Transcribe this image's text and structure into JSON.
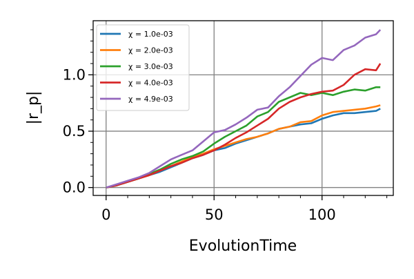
{
  "chart_data": {
    "type": "line",
    "title": "",
    "xlabel": "EvolutionTime",
    "ylabel": "|r_p|",
    "xlim": [
      -6,
      133
    ],
    "ylim": [
      -0.07,
      1.48
    ],
    "xticks": [
      0,
      50,
      100
    ],
    "xtick_labels": [
      "0",
      "50",
      "100"
    ],
    "yticks": [
      0.0,
      0.5,
      1.0
    ],
    "ytick_labels": [
      "0.0",
      "0.5",
      "1.0"
    ],
    "grid": true,
    "legend_position": "top-left",
    "x": [
      0,
      5,
      10,
      15,
      20,
      25,
      30,
      35,
      40,
      45,
      50,
      55,
      60,
      65,
      70,
      75,
      80,
      85,
      90,
      95,
      100,
      105,
      110,
      115,
      120,
      125,
      127
    ],
    "series": [
      {
        "name": "χ = 1.0e-03",
        "color": "#1f77b4",
        "values": [
          0,
          0.02,
          0.05,
          0.08,
          0.11,
          0.14,
          0.18,
          0.22,
          0.26,
          0.29,
          0.33,
          0.35,
          0.39,
          0.42,
          0.45,
          0.48,
          0.52,
          0.54,
          0.56,
          0.57,
          0.61,
          0.64,
          0.66,
          0.66,
          0.67,
          0.68,
          0.7
        ]
      },
      {
        "name": "χ = 2.0e-03",
        "color": "#ff7f0e",
        "values": [
          0,
          0.02,
          0.05,
          0.08,
          0.11,
          0.15,
          0.19,
          0.23,
          0.27,
          0.3,
          0.34,
          0.37,
          0.4,
          0.43,
          0.45,
          0.48,
          0.52,
          0.54,
          0.58,
          0.59,
          0.64,
          0.67,
          0.68,
          0.69,
          0.7,
          0.72,
          0.73
        ]
      },
      {
        "name": "χ = 3.0e-03",
        "color": "#2ca02c",
        "values": [
          0,
          0.02,
          0.05,
          0.08,
          0.12,
          0.16,
          0.21,
          0.25,
          0.28,
          0.32,
          0.39,
          0.45,
          0.5,
          0.55,
          0.63,
          0.67,
          0.76,
          0.8,
          0.84,
          0.82,
          0.84,
          0.82,
          0.85,
          0.87,
          0.86,
          0.89,
          0.89
        ]
      },
      {
        "name": "χ = 4.0e-03",
        "color": "#d62728",
        "values": [
          0,
          0.02,
          0.05,
          0.08,
          0.11,
          0.15,
          0.19,
          0.22,
          0.26,
          0.29,
          0.33,
          0.38,
          0.44,
          0.49,
          0.55,
          0.61,
          0.7,
          0.76,
          0.8,
          0.83,
          0.85,
          0.86,
          0.91,
          1.0,
          1.05,
          1.04,
          1.1
        ]
      },
      {
        "name": "χ = 4.9e-03",
        "color": "#9467bd",
        "values": [
          0,
          0.03,
          0.06,
          0.09,
          0.13,
          0.19,
          0.25,
          0.29,
          0.33,
          0.41,
          0.49,
          0.51,
          0.56,
          0.62,
          0.69,
          0.71,
          0.81,
          0.89,
          0.99,
          1.09,
          1.15,
          1.13,
          1.22,
          1.26,
          1.33,
          1.36,
          1.4
        ]
      }
    ]
  }
}
